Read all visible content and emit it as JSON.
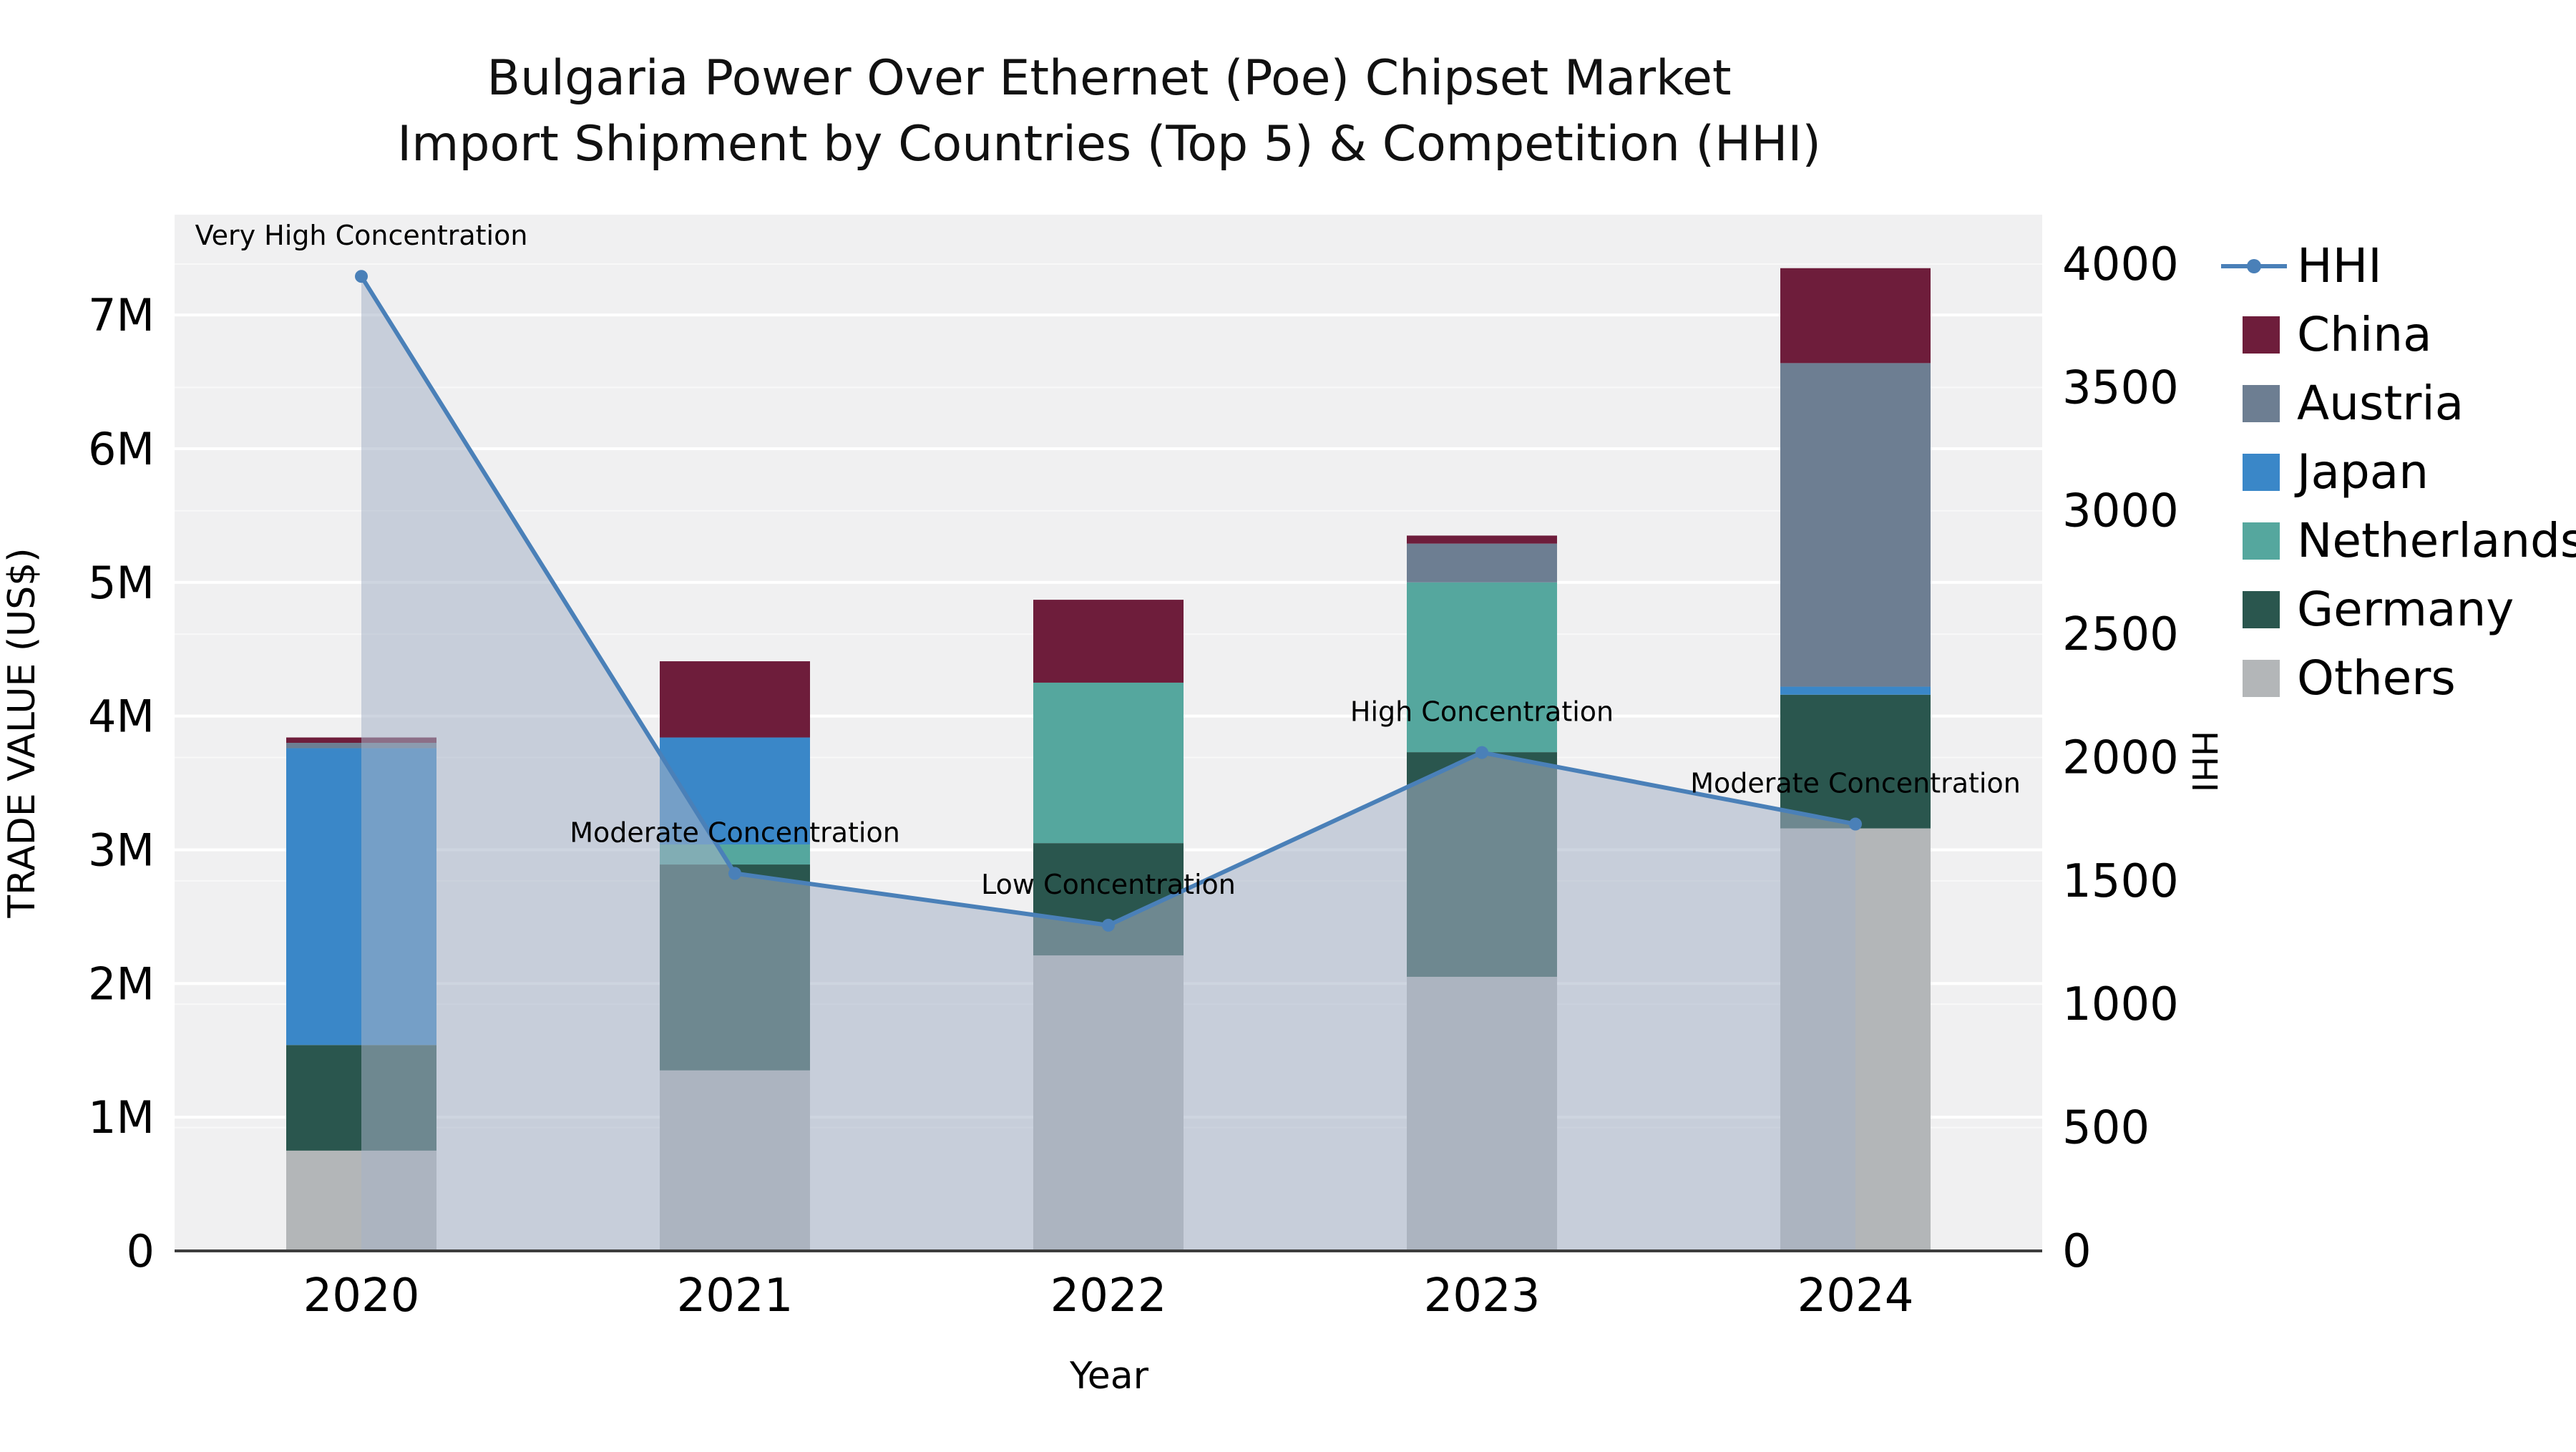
{
  "title": {
    "line1": "Bulgaria Power Over Ethernet (Poe) Chipset Market",
    "line2": "Import Shipment by Countries (Top 5) & Competition (HHI)"
  },
  "chart_data": {
    "type": "combo-stacked-bar-line",
    "x_categories": [
      "2020",
      "2021",
      "2022",
      "2023",
      "2024"
    ],
    "xlabel": "Year",
    "left_axis": {
      "label": "TRADE VALUE (US$)",
      "ticks": [
        0,
        1000000,
        2000000,
        3000000,
        4000000,
        5000000,
        6000000,
        7000000
      ],
      "tick_labels": [
        "0",
        "1M",
        "2M",
        "3M",
        "4M",
        "5M",
        "6M",
        "7M"
      ],
      "max": 7750000
    },
    "right_axis": {
      "label": "HHI",
      "ticks": [
        0,
        500,
        1000,
        1500,
        2000,
        2500,
        3000,
        3500,
        4000
      ],
      "max": 4200
    },
    "bar_series": [
      {
        "name": "Others",
        "color": "#b3b6b8",
        "values": [
          750000,
          1350000,
          2210000,
          2050000,
          3160000
        ]
      },
      {
        "name": "Germany",
        "color": "#2a564e",
        "values": [
          790000,
          1540000,
          840000,
          1680000,
          1000000
        ]
      },
      {
        "name": "Netherlands",
        "color": "#55a79e",
        "values": [
          0,
          150000,
          1200000,
          1270000,
          0
        ]
      },
      {
        "name": "Japan",
        "color": "#3a87c8",
        "values": [
          2220000,
          800000,
          0,
          0,
          60000
        ]
      },
      {
        "name": "Austria",
        "color": "#6d7e92",
        "values": [
          40000,
          0,
          0,
          290000,
          2420000
        ]
      },
      {
        "name": "China",
        "color": "#6e1d3b",
        "values": [
          40000,
          570000,
          620000,
          60000,
          710000
        ]
      }
    ],
    "line_series": {
      "name": "HHI",
      "color": "#4a80b8",
      "area_fill": "rgba(165,178,198,0.55)",
      "values": [
        3950,
        1530,
        1320,
        2020,
        1730
      ]
    },
    "annotations": [
      {
        "index": 0,
        "label": "Very High Concentration"
      },
      {
        "index": 1,
        "label": "Moderate Concentration"
      },
      {
        "index": 2,
        "label": "Low Concentration"
      },
      {
        "index": 3,
        "label": "High Concentration"
      },
      {
        "index": 4,
        "label": "Moderate Concentration"
      }
    ]
  },
  "legend": {
    "items": [
      {
        "label": "HHI",
        "marker": "line",
        "color": "#4a80b8"
      },
      {
        "label": "China",
        "marker": "square",
        "color": "#6e1d3b"
      },
      {
        "label": "Austria",
        "marker": "square",
        "color": "#6d7e92"
      },
      {
        "label": "Japan",
        "marker": "square",
        "color": "#3a87c8"
      },
      {
        "label": "Netherlands",
        "marker": "square",
        "color": "#55a79e"
      },
      {
        "label": "Germany",
        "marker": "square",
        "color": "#2a564e"
      },
      {
        "label": "Others",
        "marker": "square",
        "color": "#b3b6b8"
      }
    ]
  },
  "colors": {
    "plot_bg": "#f0f0f1",
    "grid": "#ffffff",
    "axis_line": "#3d3d3d",
    "text": "#000000"
  }
}
